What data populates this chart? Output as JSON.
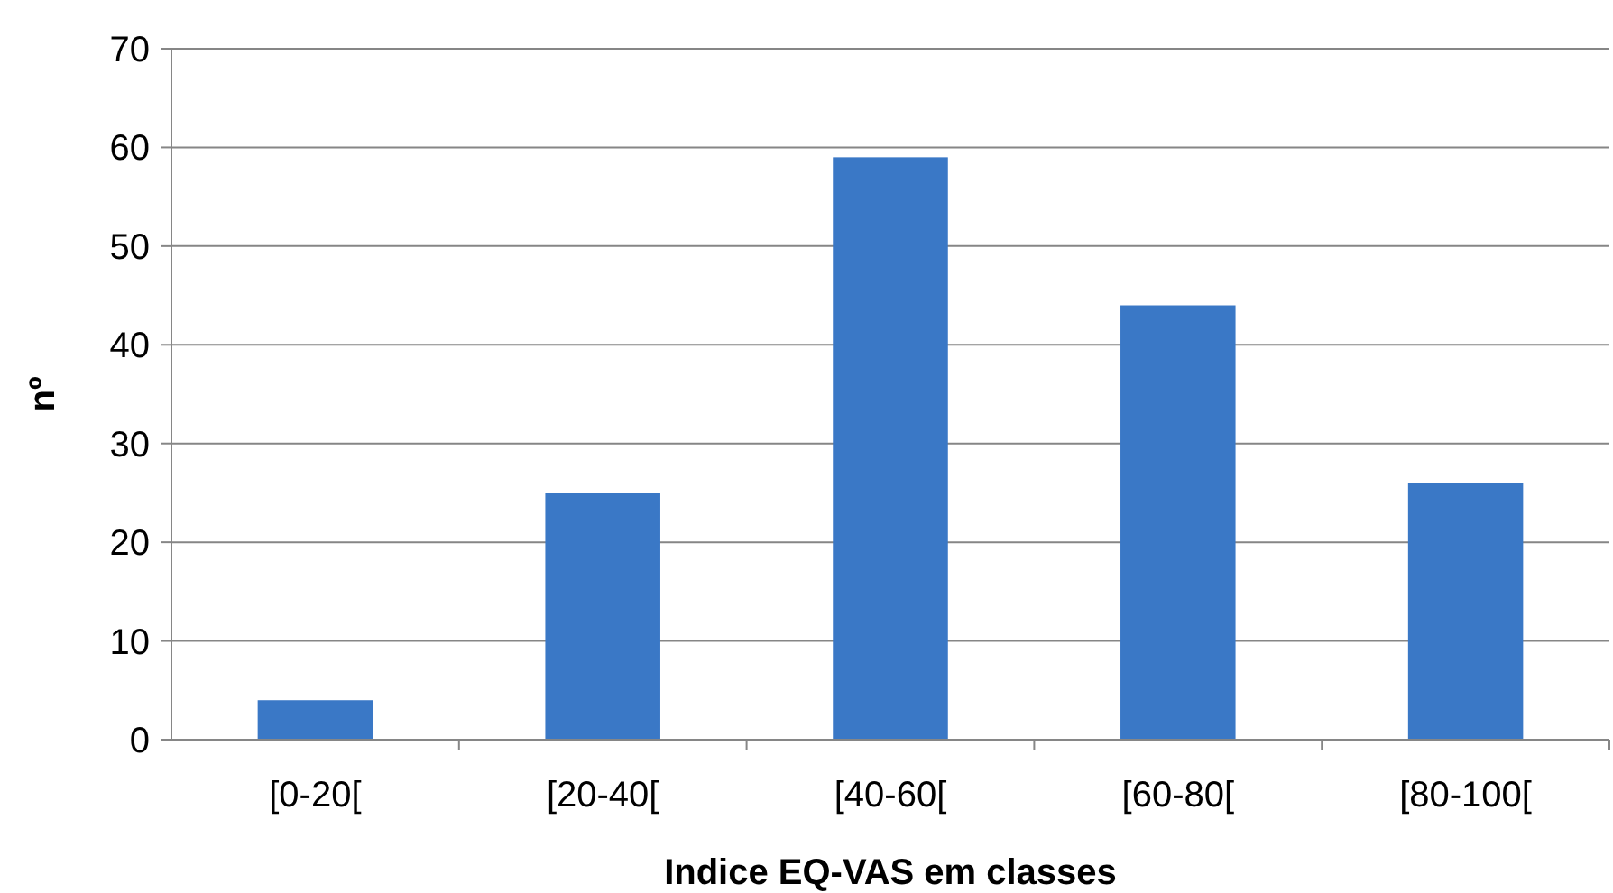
{
  "chart_data": {
    "type": "bar",
    "xlabel": "Indice EQ-VAS em classes",
    "ylabel": "nº",
    "categories": [
      "[0-20[",
      "[20-40[",
      "[40-60[",
      "[60-80[",
      "[80-100["
    ],
    "values": [
      4,
      25,
      59,
      44,
      26
    ],
    "color": "#3a78c6",
    "ylim": [
      0,
      70
    ],
    "yticks": [
      0,
      10,
      20,
      30,
      40,
      50,
      60,
      70
    ],
    "grid": "y"
  }
}
